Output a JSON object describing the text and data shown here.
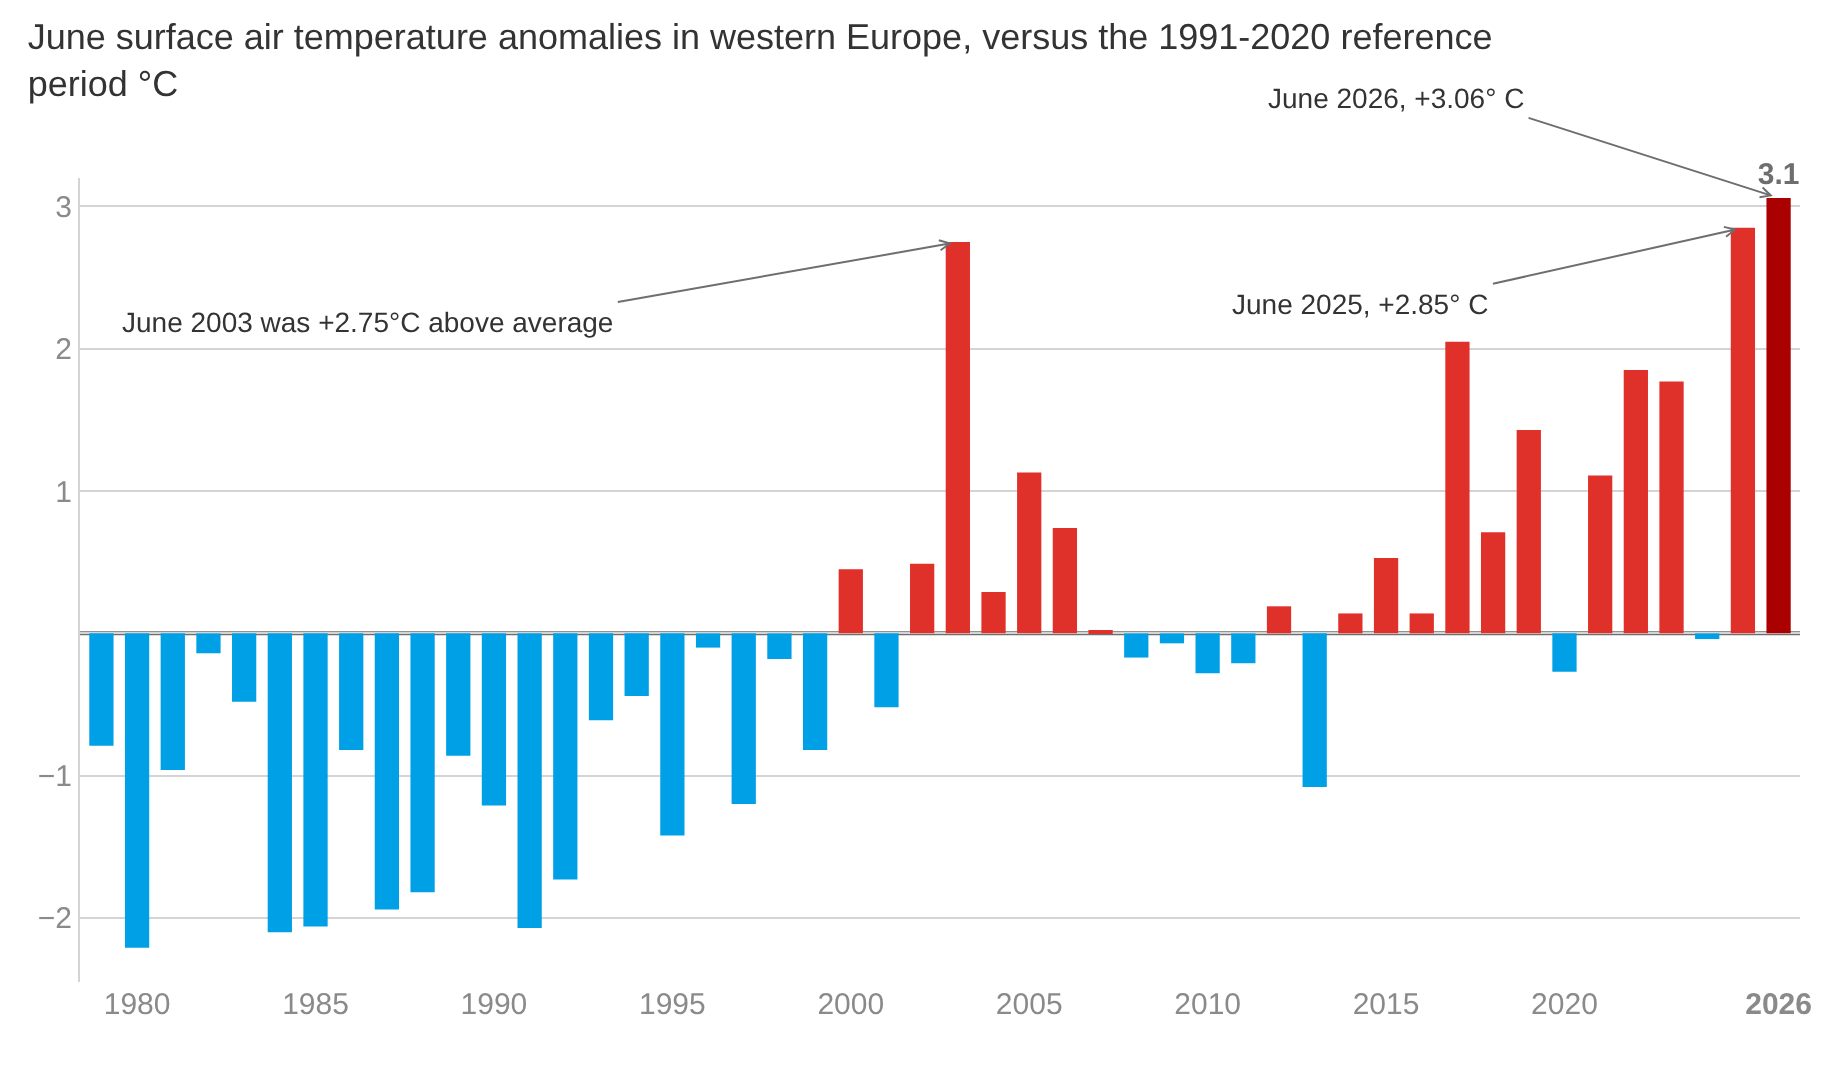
{
  "chart_data": {
    "type": "bar",
    "title": "June surface air temperature anomalies in western Europe, versus the 1991-2020 reference period °C",
    "x": [
      1979,
      1980,
      1981,
      1982,
      1983,
      1984,
      1985,
      1986,
      1987,
      1988,
      1989,
      1990,
      1991,
      1992,
      1993,
      1994,
      1995,
      1996,
      1997,
      1998,
      1999,
      2000,
      2001,
      2002,
      2003,
      2004,
      2005,
      2006,
      2007,
      2008,
      2009,
      2010,
      2011,
      2012,
      2013,
      2014,
      2015,
      2016,
      2017,
      2018,
      2019,
      2020,
      2021,
      2022,
      2023,
      2024,
      2025,
      2026
    ],
    "values": [
      -0.79,
      -2.21,
      -0.96,
      -0.14,
      -0.48,
      -2.1,
      -2.06,
      -0.82,
      -1.94,
      -1.82,
      -0.86,
      -1.21,
      -2.07,
      -1.73,
      -0.61,
      -0.44,
      -1.42,
      -0.1,
      -1.2,
      -0.18,
      -0.82,
      0.45,
      -0.52,
      0.49,
      2.75,
      0.29,
      1.13,
      0.74,
      0.01,
      -0.17,
      -0.07,
      -0.28,
      -0.21,
      0.19,
      -1.08,
      0.14,
      0.53,
      0.14,
      2.05,
      0.71,
      1.43,
      -0.27,
      1.11,
      1.85,
      1.77,
      -0.04,
      2.85,
      3.06
    ],
    "colors": [
      "#00a0e6",
      "#00a0e6",
      "#00a0e6",
      "#00a0e6",
      "#00a0e6",
      "#00a0e6",
      "#00a0e6",
      "#00a0e6",
      "#00a0e6",
      "#00a0e6",
      "#00a0e6",
      "#00a0e6",
      "#00a0e6",
      "#00a0e6",
      "#00a0e6",
      "#00a0e6",
      "#00a0e6",
      "#00a0e6",
      "#00a0e6",
      "#00a0e6",
      "#00a0e6",
      "#e0302a",
      "#00a0e6",
      "#e0302a",
      "#e0302a",
      "#e0302a",
      "#e0302a",
      "#e0302a",
      "#e0302a",
      "#00a0e6",
      "#00a0e6",
      "#00a0e6",
      "#00a0e6",
      "#e0302a",
      "#00a0e6",
      "#e0302a",
      "#e0302a",
      "#e0302a",
      "#e0302a",
      "#e0302a",
      "#e0302a",
      "#00a0e6",
      "#e0302a",
      "#e0302a",
      "#e0302a",
      "#00a0e6",
      "#e0302a",
      "#aa0000"
    ],
    "value_labels": [
      null,
      null,
      null,
      null,
      null,
      null,
      null,
      null,
      null,
      null,
      null,
      null,
      null,
      null,
      null,
      null,
      null,
      null,
      null,
      null,
      null,
      null,
      null,
      null,
      null,
      null,
      null,
      null,
      null,
      null,
      null,
      null,
      null,
      null,
      null,
      null,
      null,
      null,
      null,
      null,
      null,
      null,
      null,
      null,
      null,
      null,
      null,
      "3.1"
    ],
    "xlim": [
      1978.4,
      2026.6
    ],
    "xticks": [
      1980,
      1985,
      1990,
      1995,
      2000,
      2005,
      2010,
      2015,
      2020,
      2026
    ],
    "ylim": [
      -2.45,
      3.2
    ],
    "yticks": [
      -2,
      -1,
      {
        "value": 0,
        "label": null
      },
      1,
      2,
      3
    ],
    "grid": "y",
    "legend": false,
    "ref_lines": [
      {
        "axis": "y",
        "value": 0,
        "color": "#6e6e6e"
      }
    ],
    "annotations": [
      {
        "text": "June 2003 was +2.75°C above average",
        "x": 2003,
        "y": 2.75
      },
      {
        "text": "June 2025, +2.85° C",
        "x": 2025,
        "y": 2.85
      },
      {
        "text": "June 2026, +3.06° C",
        "x": 2026,
        "y": 3.06
      }
    ]
  }
}
